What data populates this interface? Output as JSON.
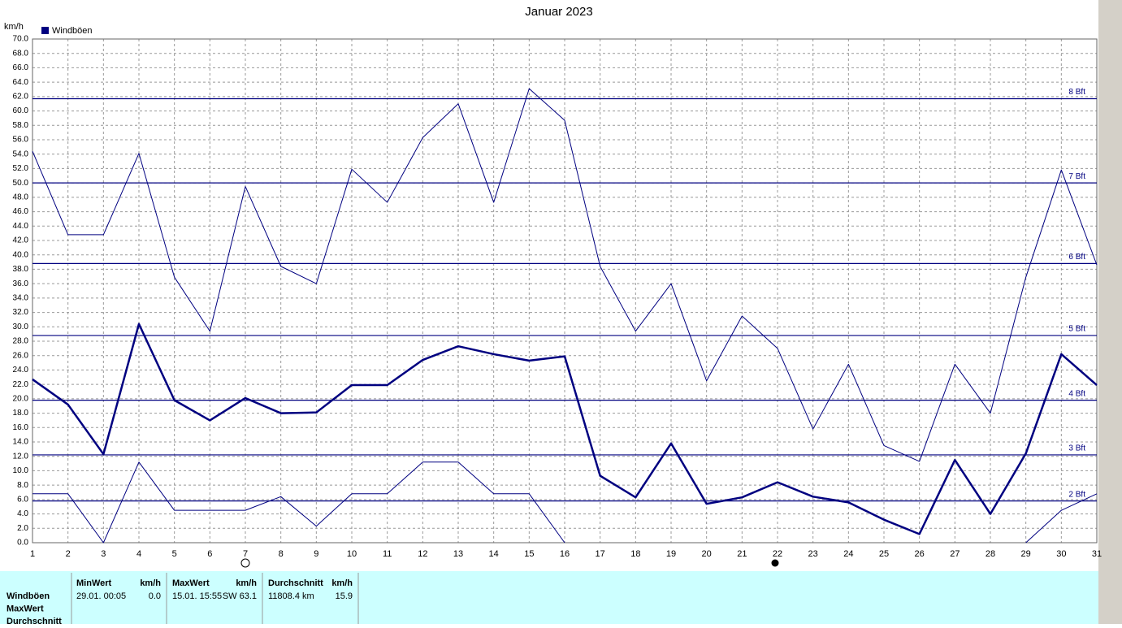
{
  "chart_data": {
    "type": "line",
    "title": "Januar 2023",
    "y_label": "km/h",
    "legend": "top-left",
    "grid": true,
    "x": [
      1,
      2,
      3,
      4,
      5,
      6,
      7,
      8,
      9,
      10,
      11,
      12,
      13,
      14,
      15,
      16,
      17,
      18,
      19,
      20,
      21,
      22,
      23,
      24,
      25,
      26,
      27,
      28,
      29,
      30,
      31
    ],
    "xlim": [
      1,
      31
    ],
    "xticks": [
      1,
      2,
      3,
      4,
      5,
      6,
      7,
      8,
      9,
      10,
      11,
      12,
      13,
      14,
      15,
      16,
      17,
      18,
      19,
      20,
      21,
      22,
      23,
      24,
      25,
      26,
      27,
      28,
      29,
      30,
      31
    ],
    "ylim": [
      0,
      70
    ],
    "yticks": [
      {
        "value": 0,
        "label": "0.0"
      },
      {
        "value": 2,
        "label": "2.0"
      },
      {
        "value": 4,
        "label": "4.0"
      },
      {
        "value": 6,
        "label": "6.0"
      },
      {
        "value": 8,
        "label": "8.0"
      },
      {
        "value": 10,
        "label": "10.0"
      },
      {
        "value": 12,
        "label": "12.0"
      },
      {
        "value": 14,
        "label": "14.0"
      },
      {
        "value": 16,
        "label": "16.0"
      },
      {
        "value": 18,
        "label": "18.0"
      },
      {
        "value": 20,
        "label": "20.0"
      },
      {
        "value": 22,
        "label": "22.0"
      },
      {
        "value": 24,
        "label": "24.0"
      },
      {
        "value": 26,
        "label": "26.0"
      },
      {
        "value": 28,
        "label": "28.0"
      },
      {
        "value": 30,
        "label": "30.0"
      },
      {
        "value": 32,
        "label": "32.0"
      },
      {
        "value": 34,
        "label": "34.0"
      },
      {
        "value": 36,
        "label": "36.0"
      },
      {
        "value": 38,
        "label": "38.0"
      },
      {
        "value": 40,
        "label": "40.0"
      },
      {
        "value": 42,
        "label": "42.0"
      },
      {
        "value": 44,
        "label": "44.0"
      },
      {
        "value": 46,
        "label": "46.0"
      },
      {
        "value": 48,
        "label": "48.0"
      },
      {
        "value": 50,
        "label": "50.0"
      },
      {
        "value": 52,
        "label": "52.0"
      },
      {
        "value": 54,
        "label": "54.0"
      },
      {
        "value": 56,
        "label": "56.0"
      },
      {
        "value": 58,
        "label": "58.0"
      },
      {
        "value": 60,
        "label": "60.0"
      },
      {
        "value": 62,
        "label": "62.0"
      },
      {
        "value": 64,
        "label": "64.0"
      },
      {
        "value": 66,
        "label": "66.0"
      },
      {
        "value": 68,
        "label": "68.0"
      },
      {
        "value": 70,
        "label": "70.0"
      }
    ],
    "ref_lines": [
      {
        "value": 61.7,
        "label": "8 Bft"
      },
      {
        "value": 50,
        "label": "7 Bft"
      },
      {
        "value": 38.8,
        "label": "6 Bft"
      },
      {
        "value": 28.8,
        "label": "5 Bft"
      },
      {
        "value": 19.8,
        "label": "4 Bft"
      },
      {
        "value": 12.2,
        "label": "3 Bft"
      },
      {
        "value": 5.8,
        "label": "2 Bft"
      }
    ],
    "ref_color": "#000080",
    "series": [
      {
        "color": "#000080",
        "width": 1,
        "values": [
          54.4,
          42.8,
          42.8,
          54.1,
          36.9,
          29.4,
          49.5,
          38.4,
          36.0,
          51.9,
          47.3,
          56.3,
          61.0,
          47.3,
          63.1,
          58.7,
          38.4,
          29.4,
          36.0,
          22.5,
          31.5,
          27.0,
          15.8,
          24.8,
          13.5,
          11.3,
          24.8,
          18.0,
          36.9,
          51.8,
          38.6
        ]
      },
      {
        "name": "Windböen",
        "color": "#000080",
        "width": 2.5,
        "values": [
          22.7,
          19.2,
          12.3,
          30.4,
          19.8,
          17.0,
          20.1,
          18.0,
          18.1,
          21.9,
          21.9,
          25.4,
          27.3,
          26.2,
          25.3,
          25.9,
          9.3,
          6.3,
          13.8,
          5.4,
          6.3,
          8.4,
          6.4,
          5.6,
          3.2,
          1.2,
          11.5,
          4.0,
          12.4,
          26.2,
          21.9
        ]
      },
      {
        "color": "#000080",
        "width": 1,
        "values": [
          6.8,
          6.8,
          0.0,
          11.2,
          4.5,
          4.5,
          4.5,
          6.4,
          2.3,
          6.8,
          6.8,
          11.2,
          11.2,
          6.8,
          6.8,
          0.0,
          null,
          null,
          null,
          null,
          null,
          null,
          null,
          null,
          null,
          null,
          null,
          null,
          0.0,
          4.5,
          6.8
        ]
      }
    ]
  },
  "stats_table": {
    "row_labels": [
      "Windböen",
      "MaxWert",
      "Durchschnitt"
    ],
    "columns": [
      {
        "header": "MinWert",
        "unit": "km/h",
        "left": "29.01.  00:05",
        "right": "0.0"
      },
      {
        "header": "MaxWert",
        "unit": "km/h",
        "left": "15.01.  15:55",
        "right": "SW 63.1"
      },
      {
        "header": "Durchschnitt",
        "unit": "km/h",
        "left": "11808.4 km",
        "right": "15.9"
      }
    ]
  }
}
